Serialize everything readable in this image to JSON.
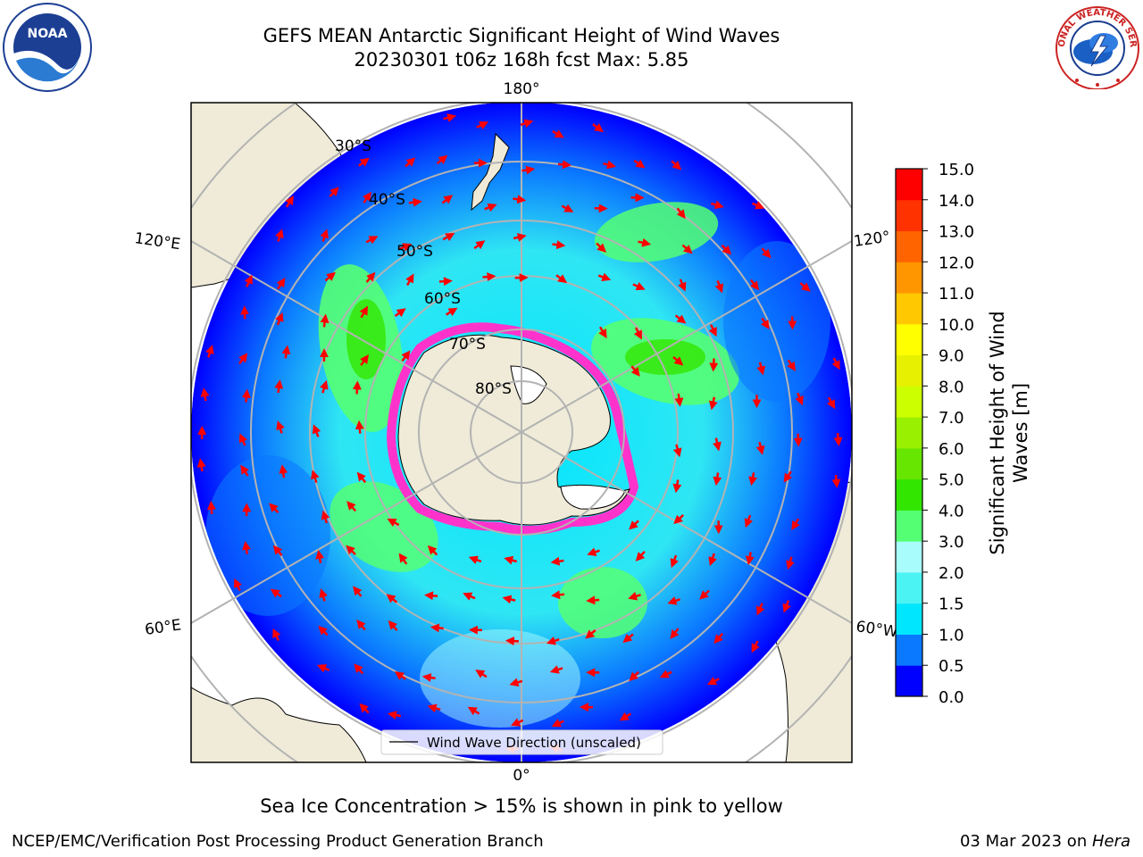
{
  "title": {
    "line1": "GEFS MEAN Antarctic Significant Height of Wind Waves",
    "line2": "20230301 t06z 168h fcst   Max: 5.85"
  },
  "map": {
    "longitude_labels": {
      "top": "180°",
      "bottom": "0°",
      "left_upper": "120°E",
      "left_lower": "60°E",
      "right_upper": "120°",
      "right_lower": "60°W"
    },
    "latitude_labels": [
      "30°S",
      "40°S",
      "50°S",
      "60°S",
      "70°S",
      "80°S"
    ],
    "legend": "Wind Wave Direction (unscaled)",
    "colors": {
      "land": "#efebd8",
      "grid": "#b3b3b3",
      "arrow": "#ff0000",
      "ice_edge": "#ff33cc",
      "ice_core": "#ffffff"
    }
  },
  "colorbar": {
    "label_line1": "Significant Height of Wind",
    "label_line2": "Waves [m]",
    "ticks": [
      "0.0",
      "0.5",
      "1.0",
      "1.5",
      "2.0",
      "3.0",
      "4.0",
      "5.0",
      "6.0",
      "7.0",
      "8.0",
      "9.0",
      "10.0",
      "11.0",
      "12.0",
      "13.0",
      "14.0",
      "15.0"
    ],
    "colors": [
      "#0000ff",
      "#0a78ff",
      "#00e6ff",
      "#4bf3f3",
      "#a8fcfc",
      "#55ff73",
      "#33e600",
      "#66e600",
      "#99f000",
      "#ccff00",
      "#e6f000",
      "#ffff00",
      "#ffc800",
      "#ff9600",
      "#ff6400",
      "#ff3200",
      "#ff0000"
    ]
  },
  "caption": "Sea Ice Concentration > 15% is shown in pink to yellow",
  "footer": {
    "left": "NCEP/EMC/Verification Post Processing Product Generation Branch",
    "date": "03 Mar 2023 on ",
    "host": "Hera"
  },
  "logos": {
    "noaa": "NOAA",
    "nws": "NATIONAL WEATHER SERVICE"
  }
}
